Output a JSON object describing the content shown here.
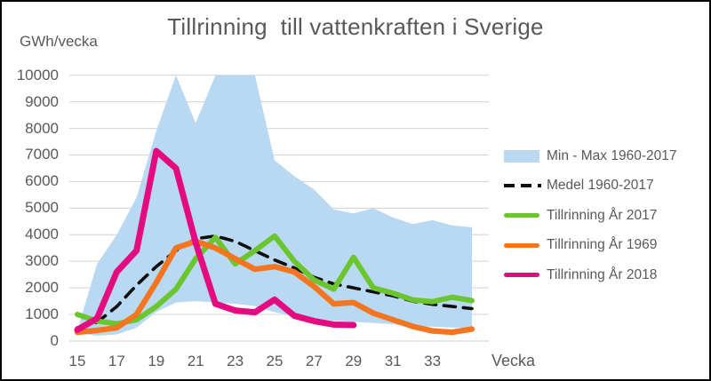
{
  "title": "Tillrinning  till vattenkraften i Sverige",
  "theme": {
    "gridline_color": "#d9d9d9",
    "text_color": "#595959",
    "frame_border_color": "#000000",
    "background_color": "#ffffff"
  },
  "chart_data": {
    "type": "area",
    "title": "Tillrinning  till vattenkraften i Sverige",
    "x": [
      15,
      16,
      17,
      18,
      19,
      20,
      21,
      22,
      23,
      24,
      25,
      26,
      27,
      28,
      29,
      30,
      31,
      32,
      33,
      34,
      35
    ],
    "x_axis": {
      "title": "Vecka",
      "tick_labels": [
        "15",
        "17",
        "19",
        "21",
        "23",
        "25",
        "27",
        "29",
        "31",
        "33"
      ],
      "tick_weeks": [
        15,
        17,
        19,
        21,
        23,
        25,
        27,
        29,
        31,
        33
      ]
    },
    "y_axis": {
      "unit": "GWh/vecka",
      "min": 0,
      "max": 10000,
      "tick_step": 1000,
      "ticks": [
        0,
        1000,
        2000,
        3000,
        4000,
        5000,
        6000,
        7000,
        8000,
        9000,
        10000
      ],
      "grid": true
    },
    "band": {
      "name": "Min - Max 1960-2017",
      "color": "#b8d9f1",
      "max": [
        400,
        2900,
        4000,
        5400,
        7900,
        10000,
        8200,
        10000,
        10000,
        10000,
        6800,
        6200,
        5700,
        4950,
        4800,
        5000,
        4650,
        4400,
        4550,
        4350,
        4280
      ],
      "min": [
        300,
        200,
        250,
        500,
        1100,
        1450,
        1500,
        1450,
        1400,
        1320,
        1080,
        950,
        850,
        760,
        720,
        680,
        630,
        570,
        540,
        510,
        490
      ]
    },
    "series": [
      {
        "name": "Medel 1960-2017",
        "color": "#0d0d0d",
        "line_style": "dashed",
        "values": [
          500,
          700,
          1300,
          2100,
          2800,
          3400,
          3850,
          3950,
          3750,
          3400,
          3050,
          2750,
          2400,
          2150,
          2000,
          1850,
          1700,
          1500,
          1380,
          1300,
          1220
        ]
      },
      {
        "name": "Tillrinning År 2017",
        "color": "#6ac52f",
        "line_style": "solid",
        "values": [
          1000,
          750,
          650,
          800,
          1300,
          1950,
          3100,
          3900,
          2900,
          3400,
          3950,
          3000,
          2300,
          1950,
          3150,
          2000,
          1800,
          1550,
          1480,
          1650,
          1520
        ]
      },
      {
        "name": "Tillrinning År 1969",
        "color": "#f4751f",
        "line_style": "solid",
        "values": [
          330,
          400,
          500,
          1000,
          2200,
          3500,
          3750,
          3500,
          3100,
          2700,
          2800,
          2600,
          2050,
          1400,
          1450,
          1050,
          800,
          550,
          380,
          330,
          450
        ]
      },
      {
        "name": "Tillrinning År 2018",
        "color": "#e40a80",
        "line_style": "solid",
        "values": [
          420,
          850,
          2600,
          3400,
          7150,
          6500,
          3700,
          1400,
          1150,
          1080,
          1560,
          950,
          750,
          620,
          600
        ]
      }
    ],
    "legend_position": "right"
  }
}
